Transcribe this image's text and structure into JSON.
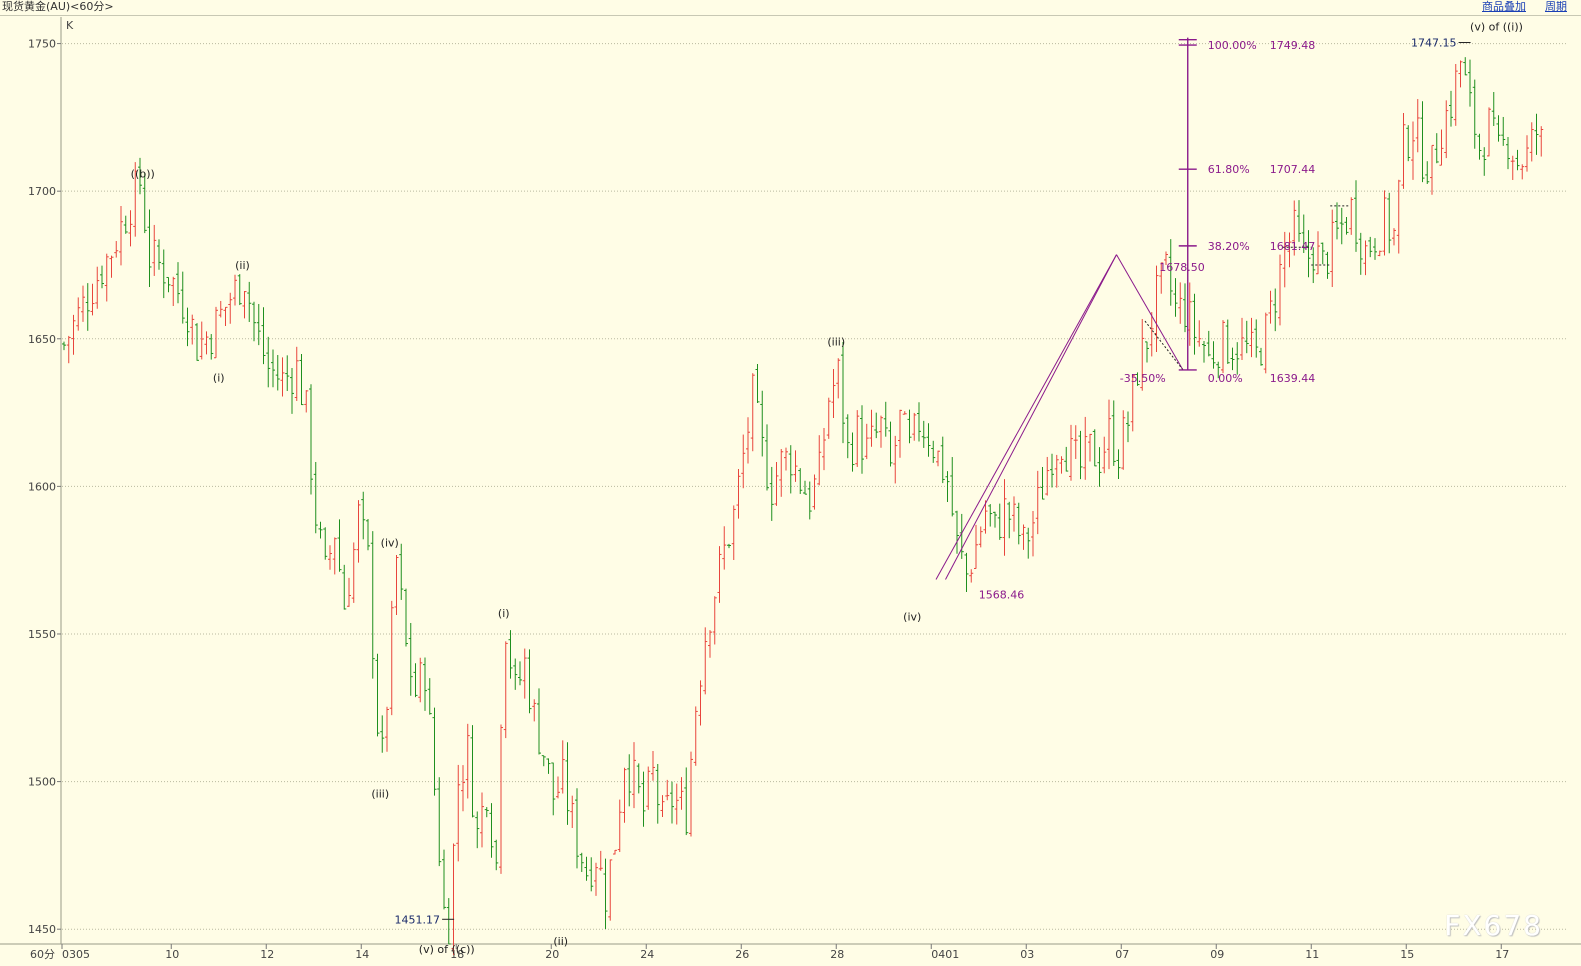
{
  "header": {
    "title": "现货黄金(AU)<60分>",
    "overlay_link": "商品叠加",
    "period_link": "周期"
  },
  "panel_label": "K",
  "period_label": "60分",
  "watermark": "FX678",
  "colors": {
    "up": "#e8453c",
    "down": "#1f8f1f",
    "fib": "#8b1a8b",
    "grid": "#b9b9a0"
  },
  "chart_data": {
    "type": "candlestick",
    "title": "",
    "xlabel": "",
    "ylabel": "",
    "ylim": [
      1446,
      1759
    ],
    "yticks": [
      1450,
      1500,
      1550,
      1600,
      1650,
      1700,
      1750
    ],
    "grid": true,
    "x_ticks": [
      {
        "label": "0305",
        "idx": 0
      },
      {
        "label": "10",
        "idx": 23
      },
      {
        "label": "12",
        "idx": 43
      },
      {
        "label": "14",
        "idx": 63
      },
      {
        "label": "18",
        "idx": 83
      },
      {
        "label": "20",
        "idx": 103
      },
      {
        "label": "24",
        "idx": 123
      },
      {
        "label": "26",
        "idx": 143
      },
      {
        "label": "28",
        "idx": 163
      },
      {
        "label": "0401",
        "idx": 183
      },
      {
        "label": "03",
        "idx": 203
      },
      {
        "label": "07",
        "idx": 223
      },
      {
        "label": "09",
        "idx": 243
      },
      {
        "label": "11",
        "idx": 263
      },
      {
        "label": "15",
        "idx": 283
      },
      {
        "label": "17",
        "idx": 303
      }
    ],
    "n_bars": 312,
    "anchors": [
      [
        0,
        1648
      ],
      [
        6,
        1668
      ],
      [
        10,
        1680
      ],
      [
        14,
        1696
      ],
      [
        16,
        1703
      ],
      [
        18,
        1678
      ],
      [
        22,
        1672
      ],
      [
        26,
        1660
      ],
      [
        28,
        1648
      ],
      [
        31,
        1652
      ],
      [
        35,
        1664
      ],
      [
        38,
        1671
      ],
      [
        40,
        1655
      ],
      [
        43,
        1640
      ],
      [
        46,
        1636
      ],
      [
        49,
        1640
      ],
      [
        51,
        1625
      ],
      [
        53,
        1590
      ],
      [
        55,
        1570
      ],
      [
        57,
        1585
      ],
      [
        59,
        1560
      ],
      [
        61,
        1578
      ],
      [
        62,
        1590
      ],
      [
        64,
        1575
      ],
      [
        66,
        1520
      ],
      [
        67,
        1508
      ],
      [
        68,
        1528
      ],
      [
        70,
        1575
      ],
      [
        72,
        1545
      ],
      [
        74,
        1530
      ],
      [
        76,
        1538
      ],
      [
        78,
        1498
      ],
      [
        80,
        1456
      ],
      [
        81,
        1453
      ],
      [
        83,
        1500
      ],
      [
        85,
        1510
      ],
      [
        87,
        1482
      ],
      [
        89,
        1498
      ],
      [
        91,
        1472
      ],
      [
        92,
        1525
      ],
      [
        93,
        1553
      ],
      [
        95,
        1530
      ],
      [
        97,
        1540
      ],
      [
        99,
        1522
      ],
      [
        101,
        1510
      ],
      [
        103,
        1495
      ],
      [
        105,
        1500
      ],
      [
        108,
        1480
      ],
      [
        110,
        1470
      ],
      [
        112,
        1475
      ],
      [
        114,
        1462
      ],
      [
        116,
        1480
      ],
      [
        118,
        1508
      ],
      [
        120,
        1500
      ],
      [
        122,
        1490
      ],
      [
        124,
        1502
      ],
      [
        126,
        1486
      ],
      [
        128,
        1494
      ],
      [
        131,
        1490
      ],
      [
        133,
        1526
      ],
      [
        135,
        1550
      ],
      [
        137,
        1565
      ],
      [
        139,
        1578
      ],
      [
        141,
        1590
      ],
      [
        143,
        1610
      ],
      [
        145,
        1630
      ],
      [
        147,
        1612
      ],
      [
        149,
        1600
      ],
      [
        151,
        1608
      ],
      [
        153,
        1610
      ],
      [
        155,
        1602
      ],
      [
        157,
        1596
      ],
      [
        159,
        1604
      ],
      [
        161,
        1630
      ],
      [
        163,
        1638
      ],
      [
        165,
        1612
      ],
      [
        167,
        1618
      ],
      [
        169,
        1612
      ],
      [
        172,
        1620
      ],
      [
        174,
        1606
      ],
      [
        176,
        1622
      ],
      [
        178,
        1612
      ],
      [
        180,
        1622
      ],
      [
        182,
        1618
      ],
      [
        184,
        1610
      ],
      [
        186,
        1602
      ],
      [
        188,
        1580
      ],
      [
        190,
        1570
      ],
      [
        192,
        1580
      ],
      [
        194,
        1592
      ],
      [
        196,
        1585
      ],
      [
        198,
        1592
      ],
      [
        200,
        1588
      ],
      [
        202,
        1580
      ],
      [
        204,
        1588
      ],
      [
        206,
        1600
      ],
      [
        208,
        1612
      ],
      [
        210,
        1616
      ],
      [
        212,
        1610
      ],
      [
        214,
        1606
      ],
      [
        216,
        1612
      ],
      [
        218,
        1610
      ],
      [
        220,
        1618
      ],
      [
        222,
        1612
      ],
      [
        224,
        1622
      ],
      [
        226,
        1640
      ],
      [
        228,
        1650
      ],
      [
        230,
        1664
      ],
      [
        232,
        1672
      ],
      [
        234,
        1660
      ],
      [
        236,
        1660
      ],
      [
        238,
        1652
      ],
      [
        240,
        1648
      ],
      [
        241,
        1643
      ],
      [
        243,
        1648
      ],
      [
        245,
        1648
      ],
      [
        247,
        1648
      ],
      [
        249,
        1646
      ],
      [
        251,
        1644
      ],
      [
        253,
        1652
      ],
      [
        255,
        1665
      ],
      [
        257,
        1680
      ],
      [
        259,
        1686
      ],
      [
        261,
        1676
      ],
      [
        263,
        1680
      ],
      [
        265,
        1675
      ],
      [
        268,
        1685
      ],
      [
        271,
        1694
      ],
      [
        274,
        1680
      ],
      [
        276,
        1685
      ],
      [
        278,
        1690
      ],
      [
        280,
        1685
      ],
      [
        282,
        1715
      ],
      [
        284,
        1722
      ],
      [
        286,
        1712
      ],
      [
        288,
        1708
      ],
      [
        290,
        1722
      ],
      [
        292,
        1730
      ],
      [
        294,
        1744
      ],
      [
        296,
        1728
      ],
      [
        298,
        1715
      ],
      [
        300,
        1722
      ],
      [
        302,
        1712
      ],
      [
        304,
        1718
      ],
      [
        306,
        1710
      ],
      [
        308,
        1712
      ],
      [
        310,
        1720
      ],
      [
        312,
        1712
      ],
      [
        314,
        1718
      ],
      [
        316,
        1728
      ],
      [
        318,
        1720
      ],
      [
        320,
        1704
      ],
      [
        322,
        1698
      ],
      [
        324,
        1693
      ]
    ],
    "overlay_segments": [
      {
        "type": "line",
        "name": "up-leg",
        "from": [
          184,
          1568.46
        ],
        "to": [
          222,
          1678.5
        ]
      },
      {
        "type": "line",
        "name": "up-leg-2",
        "from": [
          186,
          1568.46
        ],
        "to": [
          222,
          1678.5
        ]
      },
      {
        "type": "line",
        "name": "down-leg",
        "from": [
          222,
          1678.5
        ],
        "to": [
          236,
          1639.44
        ]
      },
      {
        "type": "dotted",
        "name": "down-leg-dotted",
        "from": [
          228,
          1656
        ],
        "to": [
          236,
          1639.44
        ]
      },
      {
        "type": "dotted",
        "name": "gap-box-1",
        "from": [
          257,
          1681
        ],
        "to": [
          263,
          1681
        ]
      },
      {
        "type": "dotted",
        "name": "gap-box-2",
        "from": [
          263,
          1675
        ],
        "to": [
          267,
          1675
        ]
      },
      {
        "type": "dotted",
        "name": "gap-box-3",
        "from": [
          267,
          1695
        ],
        "to": [
          271,
          1695
        ]
      }
    ],
    "fibonacci": {
      "x_idx": 237,
      "vertical_range": [
        1639.44,
        1752
      ],
      "levels": [
        {
          "pct": "100.00%",
          "value": "1749.48",
          "price": 1749.48
        },
        {
          "pct": "61.80%",
          "value": "1707.44",
          "price": 1707.44
        },
        {
          "pct": "38.20%",
          "value": "1681.47",
          "price": 1681.47
        },
        {
          "pct": "0.00%",
          "value": "1639.44",
          "price": 1639.44
        },
        {
          "pct": "-35.50%",
          "value": "",
          "price": 1639.44
        }
      ]
    },
    "annotations": [
      {
        "text": "((b))",
        "idx": 17,
        "price": 1702,
        "type": "wave",
        "dy": -8
      },
      {
        "text": "(ii)",
        "idx": 38,
        "price": 1671,
        "type": "wave",
        "dy": -8
      },
      {
        "text": "(i)",
        "idx": 33,
        "price": 1641,
        "type": "wave",
        "dy": 16
      },
      {
        "text": "(iv)",
        "idx": 69,
        "price": 1577,
        "type": "wave",
        "dy": -8
      },
      {
        "text": "(iii)",
        "idx": 67,
        "price": 1500,
        "type": "wave",
        "dy": 16
      },
      {
        "text": "(i)",
        "idx": 93,
        "price": 1553,
        "type": "wave",
        "dy": -8
      },
      {
        "text": "(ii)",
        "idx": 105,
        "price": 1450,
        "type": "wave",
        "dy": 16
      },
      {
        "text": "(iii)",
        "idx": 163,
        "price": 1645,
        "type": "wave",
        "dy": -8
      },
      {
        "text": "(iv)",
        "idx": 179,
        "price": 1560,
        "type": "wave",
        "dy": 16
      },
      {
        "text": "(v) of ((c))",
        "idx": 81,
        "price": 1446,
        "type": "wave",
        "dy": 12
      },
      {
        "text": "(v) of ((i))",
        "idx": 302,
        "price": 1753,
        "type": "wave",
        "dy": -4
      },
      {
        "text": "1451.17",
        "idx": 70,
        "price": 1452,
        "type": "price-blue",
        "dy": 0
      },
      {
        "text": "1747.15",
        "idx": 284,
        "price": 1749,
        "type": "price-blue",
        "dy": 0
      },
      {
        "text": "1568.46",
        "idx": 193,
        "price": 1562,
        "type": "price-fib",
        "dy": 0
      },
      {
        "text": "1678.50",
        "idx": 231,
        "price": 1673,
        "type": "price-fib",
        "dy": 0
      }
    ]
  }
}
